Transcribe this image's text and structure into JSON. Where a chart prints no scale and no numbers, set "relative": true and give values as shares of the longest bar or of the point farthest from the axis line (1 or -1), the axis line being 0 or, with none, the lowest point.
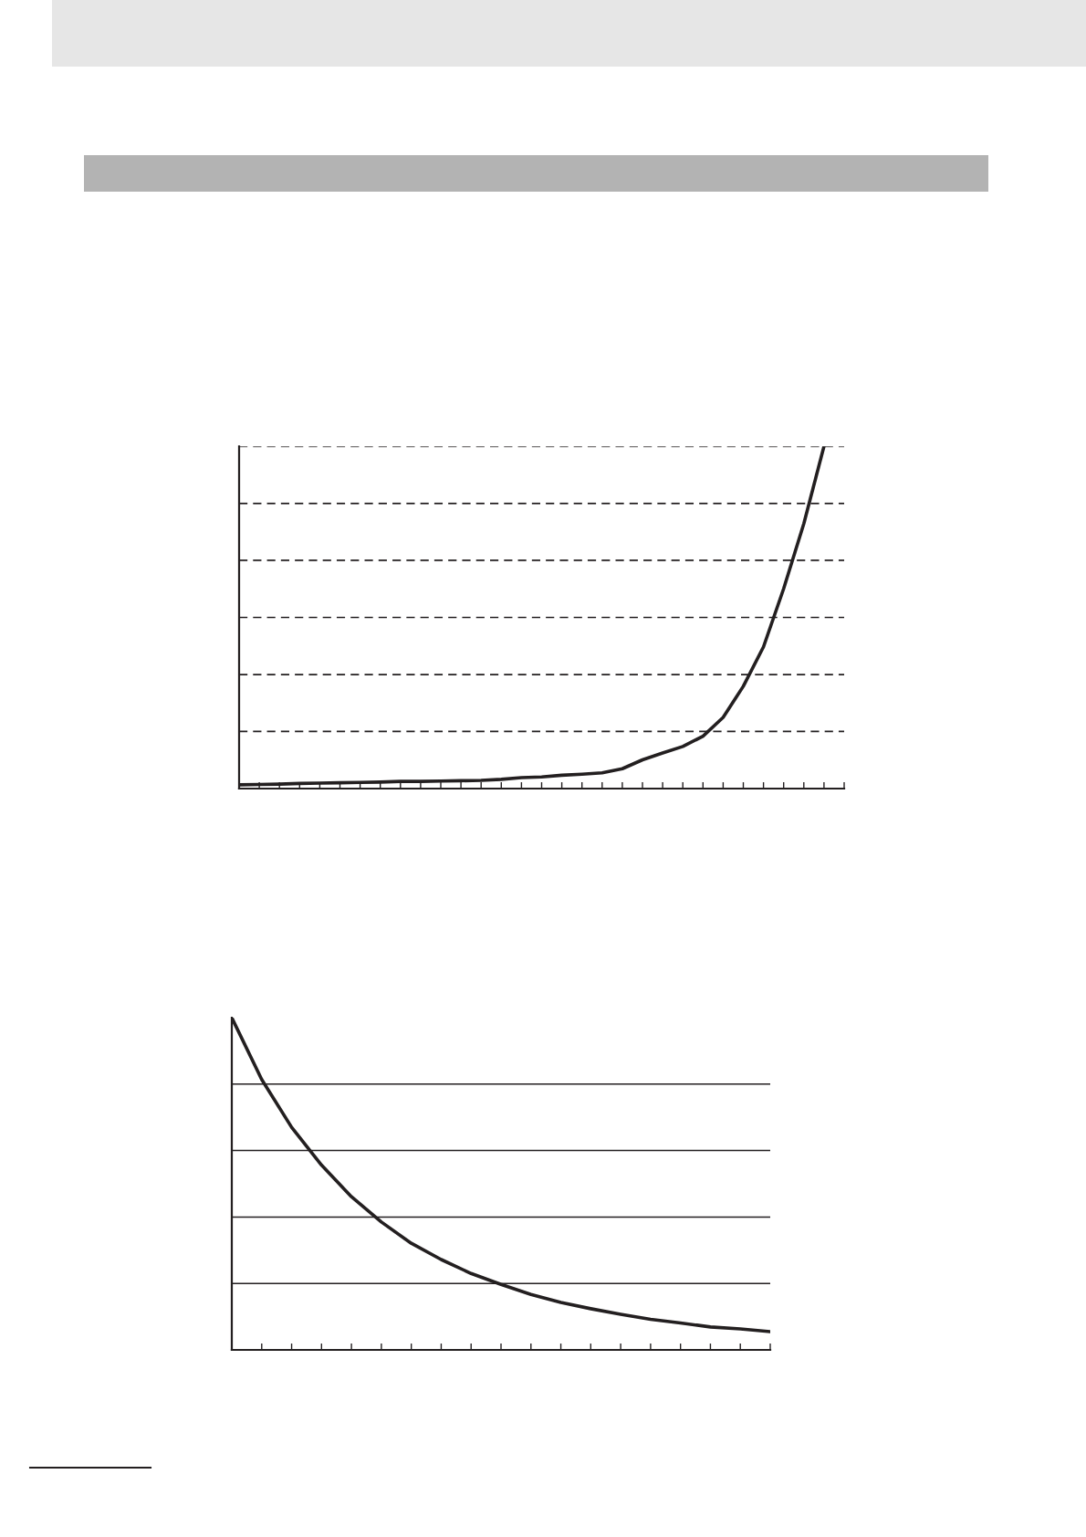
{
  "chart_data": [
    {
      "type": "line",
      "relative": true,
      "categories": [
        null,
        null,
        null,
        null,
        null,
        null,
        null,
        null,
        null,
        null,
        null,
        null,
        null,
        null,
        null,
        null,
        null,
        null,
        null,
        null,
        null,
        null,
        null,
        null,
        null,
        null,
        null,
        null,
        null,
        null,
        null
      ],
      "series": [
        {
          "color": "#231f20",
          "values": [
            0.011,
            0.012,
            0.013,
            0.015,
            0.016,
            0.017,
            0.018,
            0.019,
            0.021,
            0.021,
            0.022,
            0.023,
            0.024,
            0.027,
            0.032,
            0.034,
            0.039,
            0.042,
            0.046,
            0.058,
            0.084,
            0.104,
            0.123,
            0.153,
            0.208,
            0.299,
            0.414,
            0.584,
            0.774,
            1.0,
            null
          ]
        }
      ],
      "ref_lines": [
        {
          "axis": "y",
          "value": 0.167,
          "color": "#231f20",
          "line_style": "dashed"
        },
        {
          "axis": "y",
          "value": 0.333,
          "color": "#231f20",
          "line_style": "dashed"
        },
        {
          "axis": "y",
          "value": 0.5,
          "color": "#231f20",
          "line_style": "dashed"
        },
        {
          "axis": "y",
          "value": 0.667,
          "color": "#231f20",
          "line_style": "dashed"
        },
        {
          "axis": "y",
          "value": 0.833,
          "color": "#231f20",
          "line_style": "dashed"
        },
        {
          "axis": "y",
          "value": 1.0,
          "color": "#231f20",
          "line_style": "dashed"
        }
      ],
      "grid": false,
      "legend": false,
      "marker": "none",
      "line_style": "solid"
    },
    {
      "type": "line",
      "relative": true,
      "categories": [
        null,
        null,
        null,
        null,
        null,
        null,
        null,
        null,
        null,
        null,
        null,
        null,
        null,
        null,
        null,
        null,
        null,
        null,
        null
      ],
      "series": [
        {
          "color": "#231f20",
          "values": [
            1.0,
            0.814,
            0.67,
            0.556,
            0.461,
            0.385,
            0.321,
            0.272,
            0.23,
            0.197,
            0.167,
            0.143,
            0.124,
            0.107,
            0.092,
            0.081,
            0.069,
            0.063,
            0.055
          ]
        }
      ],
      "ref_lines": [
        {
          "axis": "y",
          "value": 0.2,
          "color": "#231f20",
          "line_style": "solid"
        },
        {
          "axis": "y",
          "value": 0.4,
          "color": "#231f20",
          "line_style": "solid"
        },
        {
          "axis": "y",
          "value": 0.6,
          "color": "#231f20",
          "line_style": "solid"
        },
        {
          "axis": "y",
          "value": 0.8,
          "color": "#231f20",
          "line_style": "solid"
        }
      ],
      "grid": false,
      "legend": false,
      "marker": "none",
      "line_style": "solid"
    }
  ]
}
